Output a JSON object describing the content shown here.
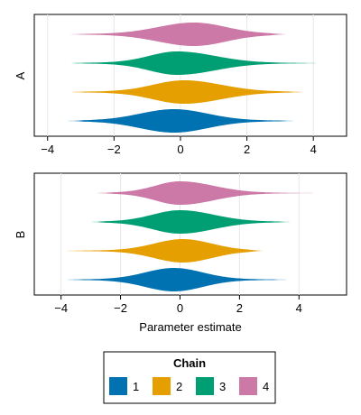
{
  "chart_data": [
    {
      "type": "violin",
      "panel_label": "A",
      "xlabel": "",
      "ylabel": "A",
      "xlim": [
        -4.4,
        5.0
      ],
      "xticks": [
        -4,
        -2,
        0,
        2,
        4
      ],
      "xtick_labels": [
        "−4",
        "−2",
        "0",
        "2",
        "4"
      ],
      "grid": true,
      "orientation": "horizontal",
      "series": [
        {
          "name": "1",
          "min": -3.4,
          "max": 3.5,
          "center": -0.2,
          "spread": 1.0,
          "skew": 0.0
        },
        {
          "name": "2",
          "min": -3.4,
          "max": 3.8,
          "center": 0.1,
          "spread": 1.0,
          "skew": 0.1
        },
        {
          "name": "3",
          "min": -3.4,
          "max": 4.3,
          "center": -0.1,
          "spread": 0.95,
          "skew": 0.15
        },
        {
          "name": "4",
          "min": -3.4,
          "max": 3.2,
          "center": 0.4,
          "spread": 1.0,
          "skew": -0.05
        }
      ]
    },
    {
      "type": "violin",
      "panel_label": "B",
      "xlabel": "Parameter estimate",
      "ylabel": "B",
      "xlim": [
        -4.9,
        5.6
      ],
      "xticks": [
        -4,
        -2,
        0,
        2,
        4
      ],
      "xtick_labels": [
        "−4",
        "−2",
        "0",
        "2",
        "4"
      ],
      "grid": true,
      "orientation": "horizontal",
      "series": [
        {
          "name": "1",
          "min": -3.9,
          "max": 3.7,
          "center": -0.2,
          "spread": 0.95,
          "skew": 0.0
        },
        {
          "name": "2",
          "min": -3.9,
          "max": 2.8,
          "center": 0.1,
          "spread": 0.95,
          "skew": 0.0
        },
        {
          "name": "3",
          "min": -3.0,
          "max": 3.8,
          "center": 0.0,
          "spread": 1.0,
          "skew": 0.1
        },
        {
          "name": "4",
          "min": -2.8,
          "max": 4.8,
          "center": 0.0,
          "spread": 0.95,
          "skew": 0.15
        }
      ]
    }
  ],
  "legend": {
    "title": "Chain",
    "placement": "bottom",
    "items": [
      {
        "label": "1",
        "color": "#0072B2"
      },
      {
        "label": "2",
        "color": "#E69F00"
      },
      {
        "label": "3",
        "color": "#009E73"
      },
      {
        "label": "4",
        "color": "#CC79A7"
      }
    ]
  }
}
